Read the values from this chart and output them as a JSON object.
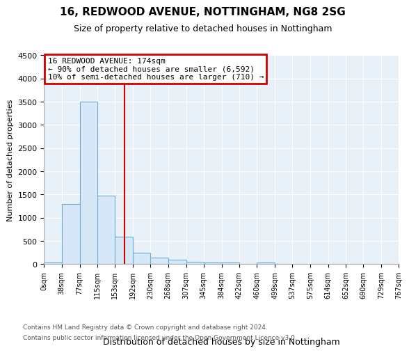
{
  "title": "16, REDWOOD AVENUE, NOTTINGHAM, NG8 2SG",
  "subtitle": "Size of property relative to detached houses in Nottingham",
  "xlabel": "Distribution of detached houses by size in Nottingham",
  "ylabel": "Number of detached properties",
  "footer_line1": "Contains HM Land Registry data © Crown copyright and database right 2024.",
  "footer_line2": "Contains public sector information licensed under the Open Government Licence v3.0.",
  "annotation_line1": "16 REDWOOD AVENUE: 174sqm",
  "annotation_line2": "← 90% of detached houses are smaller (6,592)",
  "annotation_line3": "10% of semi-detached houses are larger (710) →",
  "property_size": 174,
  "bin_edges": [
    0,
    38,
    77,
    115,
    153,
    192,
    230,
    268,
    307,
    345,
    384,
    422,
    460,
    499,
    537,
    575,
    614,
    652,
    690,
    729,
    767
  ],
  "bar_heights": [
    30,
    1290,
    3500,
    1480,
    590,
    250,
    135,
    90,
    50,
    30,
    30,
    0,
    30,
    0,
    0,
    0,
    0,
    0,
    0,
    0
  ],
  "bar_color": "#d6e8f7",
  "bar_edgecolor": "#6aaed6",
  "line_color": "#cc0000",
  "ylim": [
    0,
    4500
  ],
  "yticks": [
    0,
    500,
    1000,
    1500,
    2000,
    2500,
    3000,
    3500,
    4000,
    4500
  ],
  "plot_bg_color": "#e8f0f8",
  "background_color": "#ffffff",
  "grid_color": "#ffffff"
}
